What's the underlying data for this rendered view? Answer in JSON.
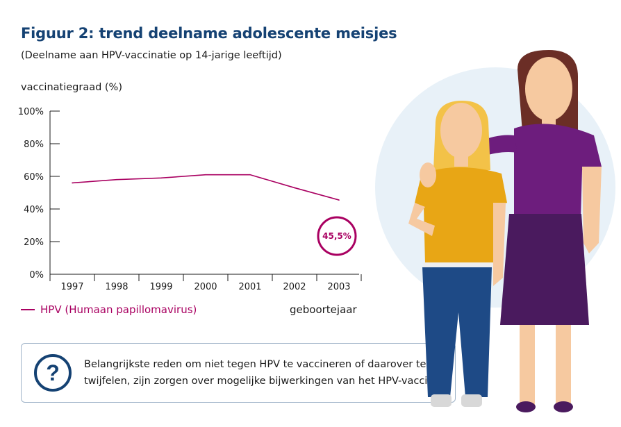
{
  "title": "Figuur 2: trend deelname adolescente meisjes",
  "subtitle": "(Deelname aan HPV-vaccinatie op 14-jarige leeftijd)",
  "legend_label": "HPV (Humaan papillomavirus)",
  "info": {
    "icon": "question-icon",
    "text": "Belangrijkste reden om niet tegen HPV te vaccineren of daarover te twijfelen, zijn zorgen over mogelijke bijwerkingen van het HPV-vaccin."
  },
  "colors": {
    "title": "#154273",
    "series": "#a90061",
    "info_border": "#9fb3c8",
    "illustration_bg": "#e8f1f8"
  },
  "chart_data": {
    "type": "line",
    "xlabel": "geboortejaar",
    "ylabel": "vaccinatiegraad (%)",
    "x": [
      "1997",
      "1998",
      "1999",
      "2000",
      "2001",
      "2002",
      "2003"
    ],
    "ylim": [
      0,
      100
    ],
    "yticks": [
      "0%",
      "20%",
      "40%",
      "60%",
      "80%",
      "100%"
    ],
    "series": [
      {
        "values": [
          56,
          58,
          59,
          61,
          61,
          53,
          45.5
        ]
      }
    ],
    "annotation": {
      "x": "2003",
      "text": "45,5%"
    },
    "grid": false
  }
}
